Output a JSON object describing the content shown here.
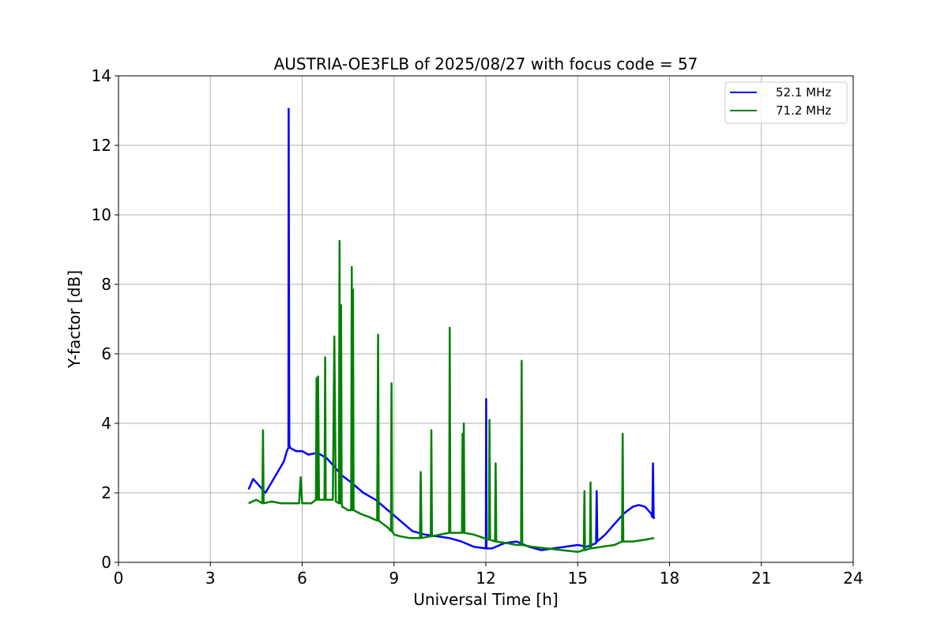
{
  "chart_data": {
    "type": "line",
    "title": "AUSTRIA-OE3FLB of 2025/08/27 with focus code = 57",
    "xlabel": "Universal Time [h]",
    "ylabel": "Y-factor [dB]",
    "xlim": [
      0,
      24
    ],
    "ylim": [
      0,
      14
    ],
    "xticks": [
      0,
      3,
      6,
      9,
      12,
      15,
      18,
      21,
      24
    ],
    "yticks": [
      0,
      2,
      4,
      6,
      8,
      10,
      12,
      14
    ],
    "grid": true,
    "legend": {
      "position": "top-right"
    },
    "series": [
      {
        "name": "52.1 MHz",
        "color": "#0000ff",
        "x": [
          4.25,
          4.4,
          4.6,
          4.8,
          5.0,
          5.2,
          5.4,
          5.5,
          5.55,
          5.56,
          5.58,
          5.6,
          5.8,
          6.0,
          6.2,
          6.5,
          6.8,
          7.0,
          7.3,
          7.6,
          8.0,
          8.4,
          8.8,
          9.2,
          9.6,
          10.0,
          10.4,
          10.8,
          11.2,
          11.6,
          12.0,
          12.01,
          12.02,
          12.2,
          12.6,
          13.0,
          13.4,
          13.8,
          14.2,
          14.6,
          15.0,
          15.3,
          15.6,
          15.62,
          15.64,
          15.9,
          16.2,
          16.5,
          16.8,
          17.0,
          17.2,
          17.4,
          17.44,
          17.46,
          17.48,
          17.5
        ],
        "y": [
          2.1,
          2.4,
          2.2,
          2.0,
          2.3,
          2.6,
          2.9,
          3.2,
          3.3,
          13.05,
          3.4,
          3.3,
          3.2,
          3.2,
          3.1,
          3.15,
          3.0,
          2.8,
          2.5,
          2.3,
          2.0,
          1.8,
          1.5,
          1.2,
          0.9,
          0.8,
          0.75,
          0.7,
          0.6,
          0.45,
          0.4,
          4.7,
          0.4,
          0.4,
          0.55,
          0.6,
          0.45,
          0.35,
          0.4,
          0.45,
          0.5,
          0.45,
          0.55,
          2.05,
          0.6,
          0.8,
          1.1,
          1.4,
          1.6,
          1.65,
          1.6,
          1.4,
          1.3,
          2.85,
          1.3,
          1.25
        ]
      },
      {
        "name": "71.2 MHz",
        "color": "#008000",
        "x": [
          4.25,
          4.5,
          4.7,
          4.72,
          4.74,
          5.0,
          5.3,
          5.6,
          5.9,
          5.95,
          6.0,
          6.3,
          6.45,
          6.47,
          6.5,
          6.52,
          6.55,
          6.73,
          6.75,
          6.77,
          6.9,
          7.0,
          7.05,
          7.1,
          7.2,
          7.22,
          7.24,
          7.27,
          7.29,
          7.31,
          7.5,
          7.6,
          7.62,
          7.64,
          7.66,
          7.68,
          7.9,
          8.2,
          8.45,
          8.48,
          8.5,
          8.8,
          8.9,
          8.92,
          8.94,
          9.0,
          9.2,
          9.5,
          9.85,
          9.87,
          9.9,
          10.2,
          10.22,
          10.24,
          10.5,
          10.8,
          10.82,
          10.84,
          11.1,
          11.22,
          11.24,
          11.26,
          11.28,
          11.3,
          11.6,
          12.1,
          12.12,
          12.14,
          12.3,
          12.32,
          12.34,
          12.7,
          13.0,
          13.15,
          13.17,
          13.19,
          13.5,
          14.0,
          14.5,
          15.0,
          15.2,
          15.22,
          15.24,
          15.4,
          15.42,
          15.44,
          15.8,
          16.2,
          16.45,
          16.47,
          16.49,
          16.8,
          17.2,
          17.5
        ],
        "y": [
          1.7,
          1.8,
          1.7,
          3.8,
          1.7,
          1.75,
          1.7,
          1.7,
          1.7,
          2.45,
          1.7,
          1.7,
          1.8,
          5.3,
          1.8,
          5.35,
          1.8,
          1.8,
          5.9,
          1.8,
          1.8,
          1.8,
          6.5,
          1.75,
          1.7,
          9.25,
          1.7,
          7.4,
          1.7,
          1.6,
          1.5,
          1.5,
          8.5,
          1.5,
          7.85,
          1.5,
          1.4,
          1.3,
          1.2,
          6.55,
          1.2,
          1.0,
          0.9,
          5.15,
          0.9,
          0.8,
          0.75,
          0.7,
          0.7,
          2.6,
          0.7,
          0.75,
          3.8,
          0.75,
          0.8,
          0.85,
          6.75,
          0.85,
          0.85,
          0.85,
          3.7,
          0.85,
          4.0,
          0.85,
          0.8,
          0.65,
          4.1,
          0.65,
          0.6,
          2.85,
          0.6,
          0.55,
          0.5,
          0.5,
          5.8,
          0.5,
          0.45,
          0.4,
          0.35,
          0.3,
          0.35,
          2.05,
          0.35,
          0.4,
          2.3,
          0.4,
          0.45,
          0.5,
          0.6,
          3.7,
          0.6,
          0.6,
          0.65,
          0.7
        ]
      }
    ]
  }
}
